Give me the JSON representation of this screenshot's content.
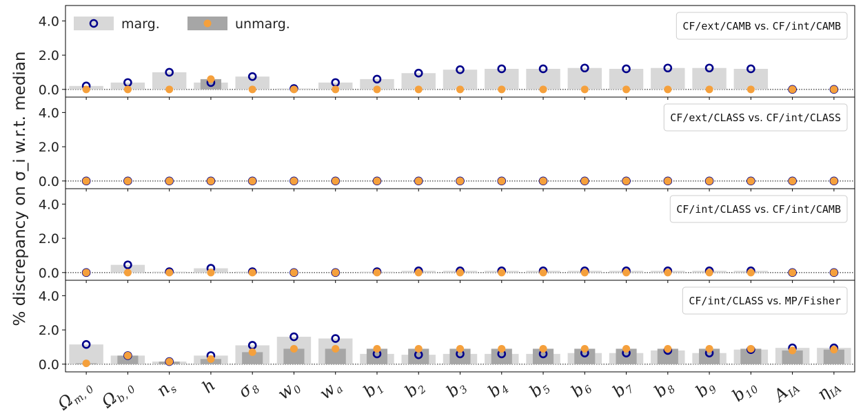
{
  "chart_data": {
    "type": "bar",
    "ylabel": "% discrepancy on σ_i w.r.t. median",
    "ylim": [
      -0.45,
      4.9
    ],
    "yticks": [
      "0.0",
      "2.0",
      "4.0"
    ],
    "grid": false,
    "legend": {
      "placement": "top-left",
      "entries": [
        {
          "label": "marg.",
          "bar_color": "#d8d8d8",
          "marker": "open-circle",
          "marker_color": "#00008b"
        },
        {
          "label": "unmarg.",
          "bar_color": "#a6a6a6",
          "marker": "filled-circle",
          "marker_color": "#f5a03c"
        }
      ]
    },
    "categories": [
      "Ω_m,0",
      "Ω_b,0",
      "n_s",
      "h",
      "σ_8",
      "w_0",
      "w_a",
      "b_1",
      "b_2",
      "b_3",
      "b_4",
      "b_5",
      "b_6",
      "b_7",
      "b_8",
      "b_9",
      "b_10",
      "A_IA",
      "η_IA"
    ],
    "category_labels": [
      {
        "base": "Ω",
        "sub": "m, 0"
      },
      {
        "base": "Ω",
        "sub": "b, 0"
      },
      {
        "base": "n",
        "sub": "s"
      },
      {
        "base": "h",
        "sub": ""
      },
      {
        "base": "σ",
        "sub": "8"
      },
      {
        "base": "w",
        "sub": "0"
      },
      {
        "base": "w",
        "sub": "a"
      },
      {
        "base": "b",
        "sub": "1"
      },
      {
        "base": "b",
        "sub": "2"
      },
      {
        "base": "b",
        "sub": "3"
      },
      {
        "base": "b",
        "sub": "4"
      },
      {
        "base": "b",
        "sub": "5"
      },
      {
        "base": "b",
        "sub": "6"
      },
      {
        "base": "b",
        "sub": "7"
      },
      {
        "base": "b",
        "sub": "8"
      },
      {
        "base": "b",
        "sub": "9"
      },
      {
        "base": "b",
        "sub": "10"
      },
      {
        "base": "A",
        "sub": "IA"
      },
      {
        "base": "η",
        "sub": "IA"
      }
    ],
    "panels": [
      {
        "title": "CF/ext/CAMB vs. CF/int/CAMB",
        "title_parts": [
          "CF/ext/CAMB",
          " vs. ",
          "CF/int/CAMB"
        ],
        "marg": [
          0.2,
          0.4,
          1.0,
          0.4,
          0.75,
          0.05,
          0.4,
          0.6,
          0.95,
          1.15,
          1.2,
          1.2,
          1.25,
          1.2,
          1.25,
          1.25,
          1.2,
          0.0,
          0.0
        ],
        "unmarg": [
          0.0,
          0.0,
          0.0,
          0.6,
          0.0,
          0.0,
          0.0,
          0.0,
          0.0,
          0.0,
          0.0,
          0.0,
          0.0,
          0.0,
          0.0,
          0.0,
          0.0,
          0.0,
          0.0
        ]
      },
      {
        "title": "CF/ext/CLASS vs. CF/int/CLASS",
        "title_parts": [
          "CF/ext/CLASS",
          " vs. ",
          "CF/int/CLASS"
        ],
        "marg": [
          0.0,
          0.0,
          0.0,
          0.0,
          0.0,
          0.0,
          0.0,
          0.0,
          0.0,
          0.0,
          0.0,
          0.0,
          0.0,
          0.0,
          0.0,
          0.0,
          0.0,
          0.0,
          0.0
        ],
        "unmarg": [
          0.0,
          0.0,
          0.0,
          0.0,
          0.0,
          0.0,
          0.0,
          0.0,
          0.0,
          0.0,
          0.0,
          0.0,
          0.0,
          0.0,
          0.0,
          0.0,
          0.0,
          0.0,
          0.0
        ]
      },
      {
        "title": "CF/int/CLASS vs. CF/int/CAMB",
        "title_parts": [
          "CF/int/CLASS",
          " vs. ",
          "CF/int/CAMB"
        ],
        "marg": [
          0.0,
          0.45,
          0.05,
          0.25,
          0.05,
          0.0,
          0.0,
          0.05,
          0.1,
          0.1,
          0.1,
          0.1,
          0.1,
          0.1,
          0.1,
          0.1,
          0.1,
          0.0,
          0.0
        ],
        "unmarg": [
          0.0,
          0.0,
          0.0,
          0.0,
          0.0,
          0.0,
          0.0,
          0.0,
          0.0,
          0.0,
          0.0,
          0.0,
          0.0,
          0.0,
          0.0,
          0.0,
          0.0,
          0.0,
          0.0
        ]
      },
      {
        "title": "CF/int/CLASS vs. MP/Fisher",
        "title_parts": [
          "CF/int/CLASS",
          " vs. ",
          "MP/Fisher"
        ],
        "marg": [
          1.15,
          0.5,
          0.15,
          0.5,
          1.1,
          1.6,
          1.5,
          0.6,
          0.55,
          0.6,
          0.6,
          0.6,
          0.65,
          0.65,
          0.8,
          0.65,
          0.85,
          0.95,
          0.95
        ],
        "unmarg": [
          0.05,
          0.5,
          0.15,
          0.3,
          0.7,
          0.9,
          0.9,
          0.9,
          0.9,
          0.9,
          0.9,
          0.9,
          0.9,
          0.9,
          0.9,
          0.9,
          0.9,
          0.8,
          0.85
        ]
      }
    ]
  }
}
